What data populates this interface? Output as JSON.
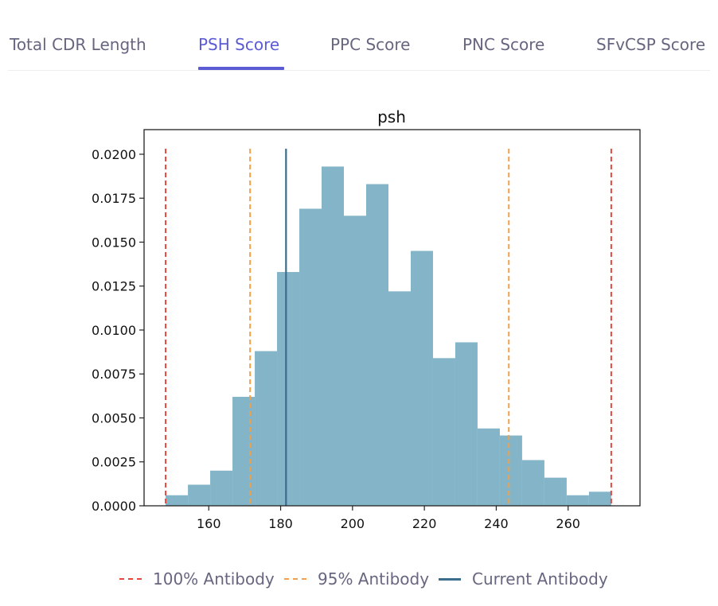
{
  "tabs": [
    {
      "label": "Total CDR Length",
      "active": false
    },
    {
      "label": "PSH Score",
      "active": true
    },
    {
      "label": "PPC Score",
      "active": false
    },
    {
      "label": "PNC Score",
      "active": false
    },
    {
      "label": "SFvCSP Score",
      "active": false
    }
  ],
  "colors": {
    "accent": "#5b5bd6",
    "bar_fill": "#84b4c8",
    "line_100": "#e8463d",
    "line_95": "#f0a14a",
    "line_current": "#3b6d8c"
  },
  "chart_data": {
    "type": "bar",
    "title": "psh",
    "xlabel": "",
    "ylabel": "",
    "xlim": [
      142,
      280
    ],
    "ylim": [
      0,
      0.0214
    ],
    "xticks": [
      160,
      180,
      200,
      220,
      240,
      260
    ],
    "yticks": [
      "0.0000",
      "0.0025",
      "0.0050",
      "0.0075",
      "0.0100",
      "0.0125",
      "0.0150",
      "0.0175",
      "0.0200"
    ],
    "grid": false,
    "bin_edges": [
      148,
      154.2,
      160.4,
      166.6,
      172.8,
      179,
      185.2,
      191.4,
      197.6,
      203.8,
      210,
      216.2,
      222.4,
      228.6,
      234.8,
      241,
      247.2,
      253.4,
      259.6,
      265.8,
      272
    ],
    "values": [
      0.0006,
      0.0012,
      0.002,
      0.0062,
      0.0088,
      0.0133,
      0.0169,
      0.0193,
      0.0165,
      0.0183,
      0.0122,
      0.0145,
      0.0084,
      0.0093,
      0.0044,
      0.004,
      0.0026,
      0.0016,
      0.0006,
      0.0008
    ],
    "vlines": [
      {
        "x": 148,
        "style": "dashed",
        "color": "#e8463d",
        "legend": "100% Antibody"
      },
      {
        "x": 272,
        "style": "dashed",
        "color": "#e8463d",
        "legend": "100% Antibody"
      },
      {
        "x": 171.5,
        "style": "dashed",
        "color": "#f0a14a",
        "legend": "95% Antibody"
      },
      {
        "x": 243.5,
        "style": "dashed",
        "color": "#f0a14a",
        "legend": "95% Antibody"
      },
      {
        "x": 181.5,
        "style": "solid",
        "color": "#3b6d8c",
        "legend": "Current Antibody"
      }
    ],
    "legend": {
      "placement": "bottom",
      "items": [
        "100% Antibody",
        "95% Antibody",
        "Current Antibody"
      ]
    }
  }
}
